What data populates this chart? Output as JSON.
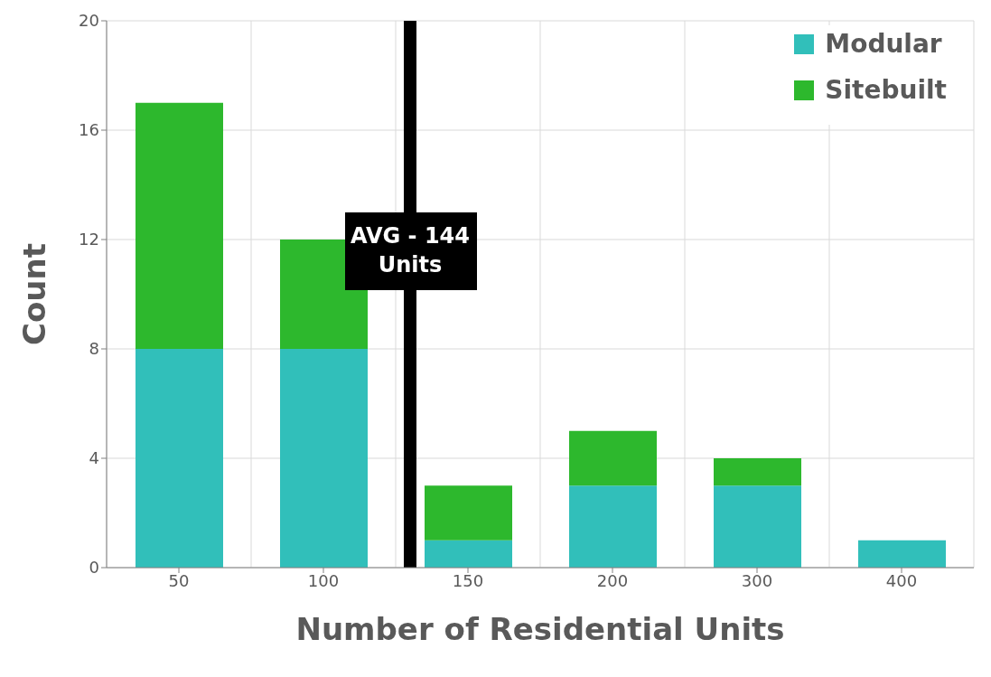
{
  "chart_data": {
    "type": "bar",
    "stacked": true,
    "xlabel": "Number of Residential Units",
    "ylabel": "Count",
    "categories": [
      "50",
      "100",
      "150",
      "200",
      "300",
      "400"
    ],
    "series": [
      {
        "name": "Modular",
        "color": "#31bfba",
        "values": [
          8,
          8,
          1,
          3,
          3,
          1
        ]
      },
      {
        "name": "Sitebuilt",
        "color": "#2db82d",
        "values": [
          9,
          4,
          2,
          2,
          1,
          0
        ]
      }
    ],
    "ylim": [
      0,
      20
    ],
    "yticks": [
      0,
      4,
      8,
      12,
      16,
      20
    ],
    "grid": true,
    "legend": "top right",
    "ref_lines": [
      {
        "axis": "x",
        "value": "150",
        "label": "AVG - 144 Units",
        "color": "#000000"
      }
    ]
  }
}
